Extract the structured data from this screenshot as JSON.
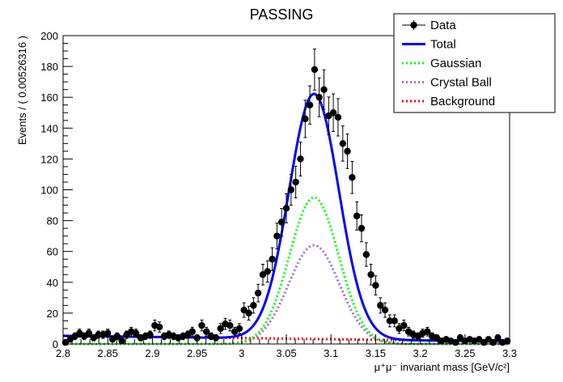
{
  "chart_data": {
    "type": "scatter",
    "title": "PASSING",
    "xlabel": "μ⁺μ⁻ invariant mass [GeV/c²]",
    "ylabel": "Events / ( 0.00526316 )",
    "xlim": [
      2.8,
      3.3
    ],
    "ylim": [
      0,
      200
    ],
    "xticks": [
      2.8,
      2.85,
      2.9,
      2.95,
      3.0,
      3.05,
      3.1,
      3.15,
      3.2,
      3.25,
      3.3
    ],
    "xtick_labels": [
      "2.8",
      "2.85",
      "2.9",
      "2.95",
      "3",
      "3.05",
      "3.1",
      "3.15",
      "3.2",
      "3.25",
      "3.3"
    ],
    "yticks": [
      0,
      20,
      40,
      60,
      80,
      100,
      120,
      140,
      160,
      180,
      200
    ],
    "ytick_labels": [
      "0",
      "20",
      "40",
      "60",
      "80",
      "100",
      "120",
      "140",
      "160",
      "180",
      "200"
    ],
    "grid": false,
    "legend": {
      "position": "top-right",
      "entries": [
        {
          "label": "Data",
          "style": "marker-errorbar",
          "color": "#000000"
        },
        {
          "label": "Total",
          "style": "solid",
          "color": "#0000ff"
        },
        {
          "label": "Gaussian",
          "style": "dotted",
          "color": "#00ff00"
        },
        {
          "label": "Crystal Ball",
          "style": "dotted",
          "color": "#a070c0"
        },
        {
          "label": "Background",
          "style": "dotted",
          "color": "#ff0000"
        }
      ]
    },
    "data": {
      "name": "Data",
      "x": [
        2.8026,
        2.8079,
        2.8132,
        2.8184,
        2.8237,
        2.8289,
        2.8342,
        2.8395,
        2.8447,
        2.85,
        2.8553,
        2.8605,
        2.8658,
        2.8711,
        2.8763,
        2.8816,
        2.8868,
        2.8921,
        2.8974,
        2.9026,
        2.9079,
        2.9132,
        2.9184,
        2.9237,
        2.9289,
        2.9342,
        2.9395,
        2.9447,
        2.95,
        2.9553,
        2.9605,
        2.9658,
        2.9711,
        2.9763,
        2.9816,
        2.9868,
        2.9921,
        2.9974,
        3.0026,
        3.0079,
        3.0132,
        3.0184,
        3.0237,
        3.0289,
        3.0342,
        3.0395,
        3.0447,
        3.05,
        3.0553,
        3.0605,
        3.0658,
        3.0711,
        3.0763,
        3.0816,
        3.0868,
        3.0921,
        3.0974,
        3.1026,
        3.1079,
        3.1132,
        3.1184,
        3.1237,
        3.1289,
        3.1342,
        3.1395,
        3.1447,
        3.15,
        3.1553,
        3.1605,
        3.1658,
        3.1711,
        3.1763,
        3.1816,
        3.1868,
        3.1921,
        3.1974,
        3.2026,
        3.2079,
        3.2132,
        3.2184,
        3.2237,
        3.2289,
        3.2342,
        3.2395,
        3.2447,
        3.25,
        3.2553,
        3.2605,
        3.2658,
        3.2711,
        3.2763,
        3.2816,
        3.2868,
        3.2921,
        3.2974
      ],
      "y": [
        1,
        3,
        5,
        7,
        5,
        7,
        4,
        6,
        6,
        7,
        3,
        5,
        2,
        6,
        8,
        7,
        4,
        5,
        6,
        12,
        11,
        5,
        6,
        5,
        4,
        5,
        6,
        8,
        4,
        12,
        8,
        5,
        4,
        10,
        13,
        12,
        8,
        10,
        22,
        20,
        25,
        33,
        45,
        47,
        55,
        70,
        79,
        88,
        100,
        105,
        120,
        146,
        155,
        178,
        160,
        165,
        148,
        150,
        147,
        130,
        125,
        108,
        83,
        75,
        58,
        45,
        38,
        25,
        22,
        15,
        15,
        10,
        12,
        8,
        6,
        5,
        7,
        8,
        5,
        4,
        2,
        3,
        2,
        1,
        4,
        2,
        3,
        2,
        3,
        1,
        3,
        1,
        4,
        1,
        2
      ],
      "error": [
        1,
        1.7,
        2.2,
        2.6,
        2.2,
        2.6,
        2,
        2.4,
        2.4,
        2.6,
        1.7,
        2.2,
        1.4,
        2.4,
        2.8,
        2.6,
        2,
        2.2,
        2.4,
        3.5,
        3.3,
        2.2,
        2.4,
        2.2,
        2,
        2.2,
        2.4,
        2.8,
        2,
        3.5,
        2.8,
        2.2,
        2,
        3.2,
        3.6,
        3.5,
        2.8,
        3.2,
        4.7,
        4.5,
        5,
        5.7,
        6.7,
        6.9,
        7.4,
        8.4,
        8.9,
        9.4,
        10,
        10.2,
        11,
        12.1,
        12.4,
        13.3,
        12.6,
        12.8,
        12.2,
        12.2,
        12.1,
        11.4,
        11.2,
        10.4,
        9.1,
        8.7,
        7.6,
        6.7,
        6.2,
        5,
        4.7,
        3.9,
        3.9,
        3.2,
        3.5,
        2.8,
        2.4,
        2.2,
        2.6,
        2.8,
        2.2,
        2,
        1.4,
        1.7,
        1.4,
        1,
        2,
        1.4,
        1.7,
        1.4,
        1.7,
        1,
        1.7,
        1,
        2,
        1,
        1.4
      ]
    },
    "fit_model": {
      "gaussian": {
        "mean": 3.081,
        "sigma": 0.0275,
        "peak": 95
      },
      "crystal_ball": {
        "mean": 3.081,
        "sigma": 0.0285,
        "peak": 64
      },
      "background": {
        "at_2.8": 5.3,
        "at_3.3": 1.6
      }
    },
    "colors": {
      "data": "#000000",
      "total": "#0000ff",
      "gaussian": "#00ff00",
      "crystal_ball": "#a070c0",
      "background": "#ff0000"
    }
  }
}
